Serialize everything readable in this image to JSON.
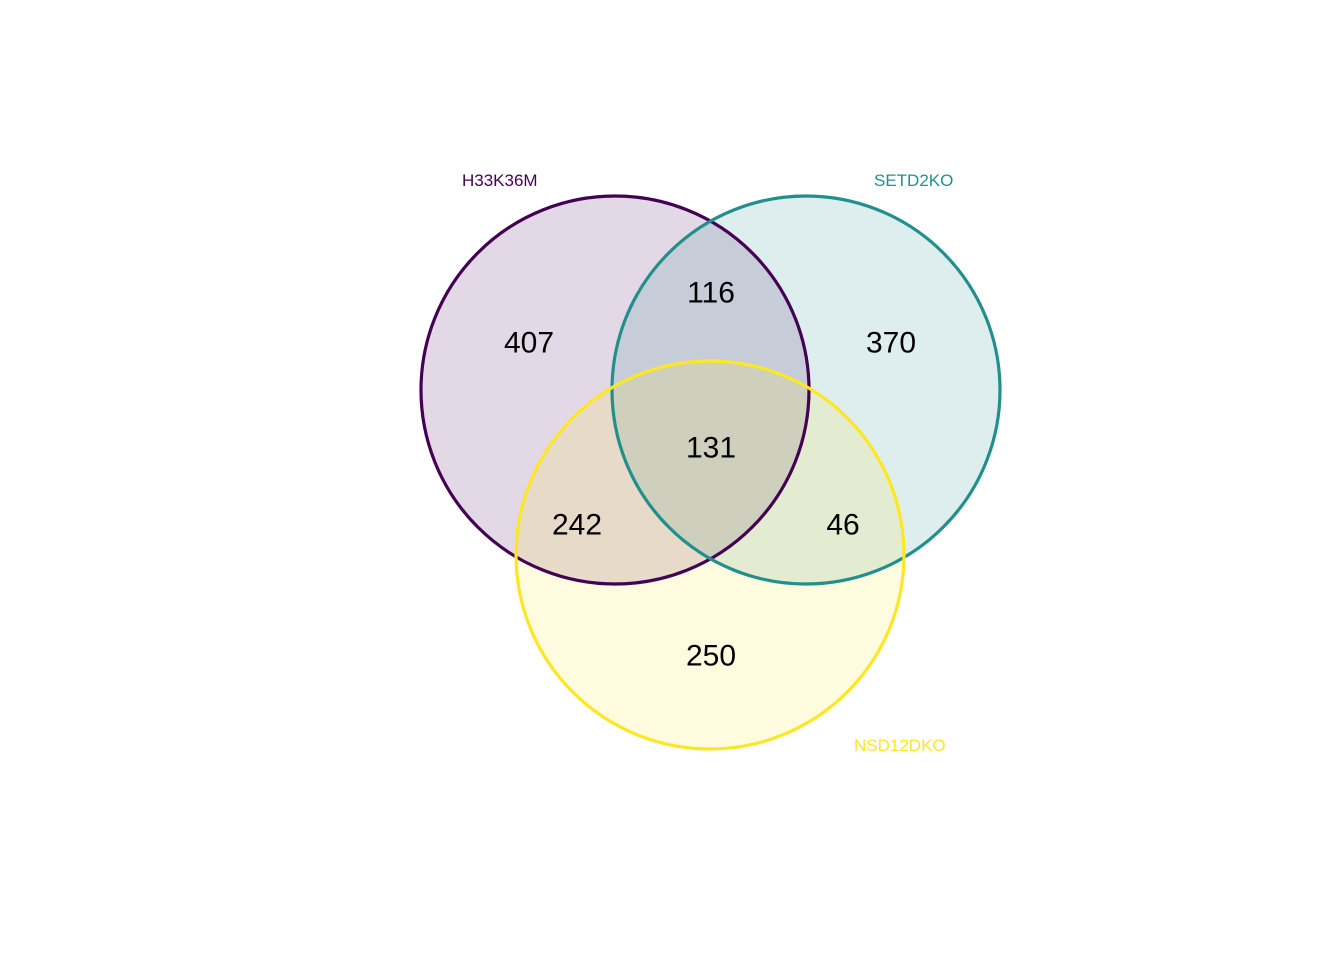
{
  "diagram": {
    "type": "venn",
    "sets": [
      {
        "id": "a",
        "name": "H33K36M",
        "color": "#440154"
      },
      {
        "id": "b",
        "name": "SETD2KO",
        "color": "#21908C"
      },
      {
        "id": "c",
        "name": "NSD12DKO",
        "color": "#FDE725"
      }
    ],
    "regions": {
      "a_only": "407",
      "b_only": "370",
      "c_only": "250",
      "ab": "116",
      "ac": "242",
      "bc": "46",
      "abc": "131"
    }
  }
}
